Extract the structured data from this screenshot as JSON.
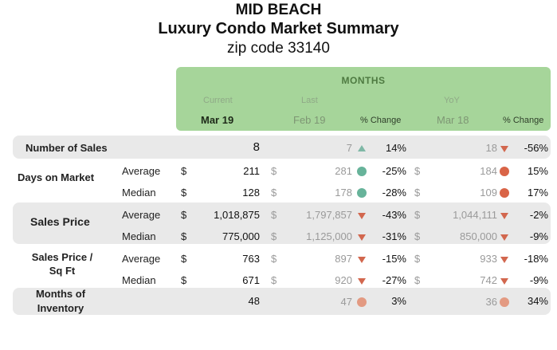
{
  "title": {
    "line1": "MID BEACH",
    "line2": "Luxury Condo Market Summary",
    "line3": "zip code 33140"
  },
  "header": {
    "months_label": "MONTHS",
    "current_sub": "Current",
    "last_sub": "Last",
    "yoy_sub": "YoY",
    "current_period": "Mar 19",
    "last_period": "Feb 19",
    "last_change": "% Change",
    "yoy_period": "Mar 18",
    "yoy_change": "% Change"
  },
  "colors": {
    "header_green": "#a6d59a",
    "band_gray": "#e9e9e9",
    "up_teal": "#7fb8a6",
    "down_red": "#d2674e",
    "dot_green": "#67b39a",
    "dot_red": "#d96447",
    "dot_salmon": "#e39a82"
  },
  "rows": {
    "sales": {
      "label": "Number of Sales",
      "current": "8",
      "last": "7",
      "last_indicator": "triangle-up",
      "last_change": "14%",
      "yoy": "18",
      "yoy_indicator": "triangle-down",
      "yoy_change": "-56%"
    },
    "dom_label": "Days on Market",
    "dom_avg": {
      "sub": "Average",
      "d1": "$",
      "current": "211",
      "d2": "$",
      "last": "281",
      "last_indicator": "circle-green",
      "last_change": "-25%",
      "d3": "$",
      "yoy": "184",
      "yoy_indicator": "circle-red",
      "yoy_change": "15%"
    },
    "dom_med": {
      "sub": "Median",
      "d1": "$",
      "current": "128",
      "d2": "$",
      "last": "178",
      "last_indicator": "circle-green",
      "last_change": "-28%",
      "d3": "$",
      "yoy": "109",
      "yoy_indicator": "circle-red",
      "yoy_change": "17%"
    },
    "price_label": "Sales Price",
    "price_avg": {
      "sub": "Average",
      "d1": "$",
      "current": "1,018,875",
      "d2": "$",
      "last": "1,797,857",
      "last_indicator": "triangle-down",
      "last_change": "-43%",
      "d3": "$",
      "yoy": "1,044,111",
      "yoy_indicator": "triangle-down",
      "yoy_change": "-2%"
    },
    "price_med": {
      "sub": "Median",
      "d1": "$",
      "current": "775,000",
      "d2": "$",
      "last": "1,125,000",
      "last_indicator": "triangle-down",
      "last_change": "-31%",
      "d3": "$",
      "yoy": "850,000",
      "yoy_indicator": "triangle-down",
      "yoy_change": "-9%"
    },
    "sqft_label_1": "Sales Price /",
    "sqft_label_2": "Sq Ft",
    "sqft_avg": {
      "sub": "Average",
      "d1": "$",
      "current": "763",
      "d2": "$",
      "last": "897",
      "last_indicator": "triangle-down",
      "last_change": "-15%",
      "d3": "$",
      "yoy": "933",
      "yoy_indicator": "triangle-down",
      "yoy_change": "-18%"
    },
    "sqft_med": {
      "sub": "Median",
      "d1": "$",
      "current": "671",
      "d2": "$",
      "last": "920",
      "last_indicator": "triangle-down",
      "last_change": "-27%",
      "d3": "$",
      "yoy": "742",
      "yoy_indicator": "triangle-down",
      "yoy_change": "-9%"
    },
    "inv": {
      "label_1": "Months of",
      "label_2": "Inventory",
      "current": "48",
      "last": "47",
      "last_indicator": "circle-salmon",
      "last_change": "3%",
      "yoy": "36",
      "yoy_indicator": "circle-salmon",
      "yoy_change": "34%"
    }
  }
}
